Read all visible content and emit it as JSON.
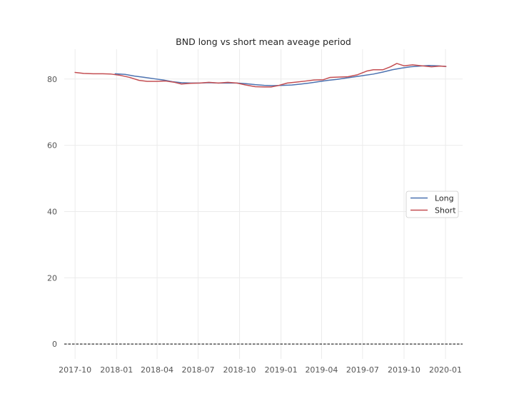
{
  "chart_data": {
    "type": "line",
    "title": "BND long vs short mean aveage period",
    "xlabel": "",
    "ylabel": "",
    "x_ticks": [
      "2017-10",
      "2018-01",
      "2018-04",
      "2018-07",
      "2018-10",
      "2019-01",
      "2019-04",
      "2019-07",
      "2019-10",
      "2020-01"
    ],
    "y_ticks": [
      0,
      20,
      40,
      60,
      80
    ],
    "xlim": [
      "2017-09-07",
      "2020-02-08"
    ],
    "ylim": [
      -4.5,
      89
    ],
    "grid": true,
    "legend": {
      "position": "center-right",
      "entries": [
        "Long",
        "Short"
      ]
    },
    "reference_line": {
      "y": 0,
      "style": "dashed",
      "color": "#000000"
    },
    "series": [
      {
        "name": "Long",
        "color": "#4c72b0",
        "points": [
          [
            "2017-12-29",
            81.6
          ],
          [
            "2018-01-20",
            81.4
          ],
          [
            "2018-02-10",
            80.9
          ],
          [
            "2018-03-05",
            80.5
          ],
          [
            "2018-03-25",
            80.1
          ],
          [
            "2018-04-15",
            79.7
          ],
          [
            "2018-05-05",
            79.2
          ],
          [
            "2018-05-25",
            78.9
          ],
          [
            "2018-06-15",
            78.8
          ],
          [
            "2018-07-05",
            78.8
          ],
          [
            "2018-07-25",
            78.9
          ],
          [
            "2018-08-15",
            78.8
          ],
          [
            "2018-09-05",
            78.8
          ],
          [
            "2018-09-25",
            78.8
          ],
          [
            "2018-10-15",
            78.6
          ],
          [
            "2018-11-05",
            78.3
          ],
          [
            "2018-11-25",
            78.1
          ],
          [
            "2018-12-15",
            78.0
          ],
          [
            "2019-01-05",
            78.1
          ],
          [
            "2019-01-25",
            78.2
          ],
          [
            "2019-02-15",
            78.5
          ],
          [
            "2019-03-05",
            78.8
          ],
          [
            "2019-03-25",
            79.2
          ],
          [
            "2019-04-15",
            79.6
          ],
          [
            "2019-05-05",
            79.9
          ],
          [
            "2019-05-25",
            80.3
          ],
          [
            "2019-06-15",
            80.7
          ],
          [
            "2019-07-05",
            81.1
          ],
          [
            "2019-07-25",
            81.5
          ],
          [
            "2019-08-15",
            82.1
          ],
          [
            "2019-09-05",
            82.8
          ],
          [
            "2019-09-25",
            83.3
          ],
          [
            "2019-10-15",
            83.7
          ],
          [
            "2019-11-05",
            83.9
          ],
          [
            "2019-11-25",
            84.1
          ],
          [
            "2019-12-15",
            84.0
          ],
          [
            "2020-01-02",
            83.8
          ]
        ]
      },
      {
        "name": "Short",
        "color": "#c44e52",
        "points": [
          [
            "2017-10-01",
            82.0
          ],
          [
            "2017-10-20",
            81.7
          ],
          [
            "2017-11-10",
            81.6
          ],
          [
            "2017-12-01",
            81.6
          ],
          [
            "2017-12-20",
            81.5
          ],
          [
            "2018-01-10",
            81.1
          ],
          [
            "2018-01-30",
            80.5
          ],
          [
            "2018-02-20",
            79.6
          ],
          [
            "2018-03-10",
            79.3
          ],
          [
            "2018-03-31",
            79.3
          ],
          [
            "2018-04-20",
            79.4
          ],
          [
            "2018-05-10",
            79.0
          ],
          [
            "2018-05-25",
            78.5
          ],
          [
            "2018-06-15",
            78.7
          ],
          [
            "2018-07-05",
            78.8
          ],
          [
            "2018-07-25",
            79.0
          ],
          [
            "2018-08-15",
            78.8
          ],
          [
            "2018-09-05",
            79.0
          ],
          [
            "2018-09-25",
            78.8
          ],
          [
            "2018-10-15",
            78.2
          ],
          [
            "2018-11-05",
            77.7
          ],
          [
            "2018-11-25",
            77.6
          ],
          [
            "2018-12-10",
            77.6
          ],
          [
            "2018-12-25",
            78.0
          ],
          [
            "2019-01-15",
            78.8
          ],
          [
            "2019-02-05",
            79.1
          ],
          [
            "2019-02-25",
            79.4
          ],
          [
            "2019-03-15",
            79.7
          ],
          [
            "2019-04-05",
            79.8
          ],
          [
            "2019-04-20",
            80.5
          ],
          [
            "2019-05-10",
            80.6
          ],
          [
            "2019-05-30",
            80.7
          ],
          [
            "2019-06-20",
            81.3
          ],
          [
            "2019-07-10",
            82.4
          ],
          [
            "2019-07-25",
            82.8
          ],
          [
            "2019-08-15",
            82.8
          ],
          [
            "2019-09-01",
            83.7
          ],
          [
            "2019-09-15",
            84.7
          ],
          [
            "2019-10-01",
            84.0
          ],
          [
            "2019-10-20",
            84.3
          ],
          [
            "2019-11-10",
            84.0
          ],
          [
            "2019-12-01",
            83.7
          ],
          [
            "2019-12-20",
            83.9
          ],
          [
            "2020-01-02",
            83.8
          ]
        ]
      }
    ]
  }
}
